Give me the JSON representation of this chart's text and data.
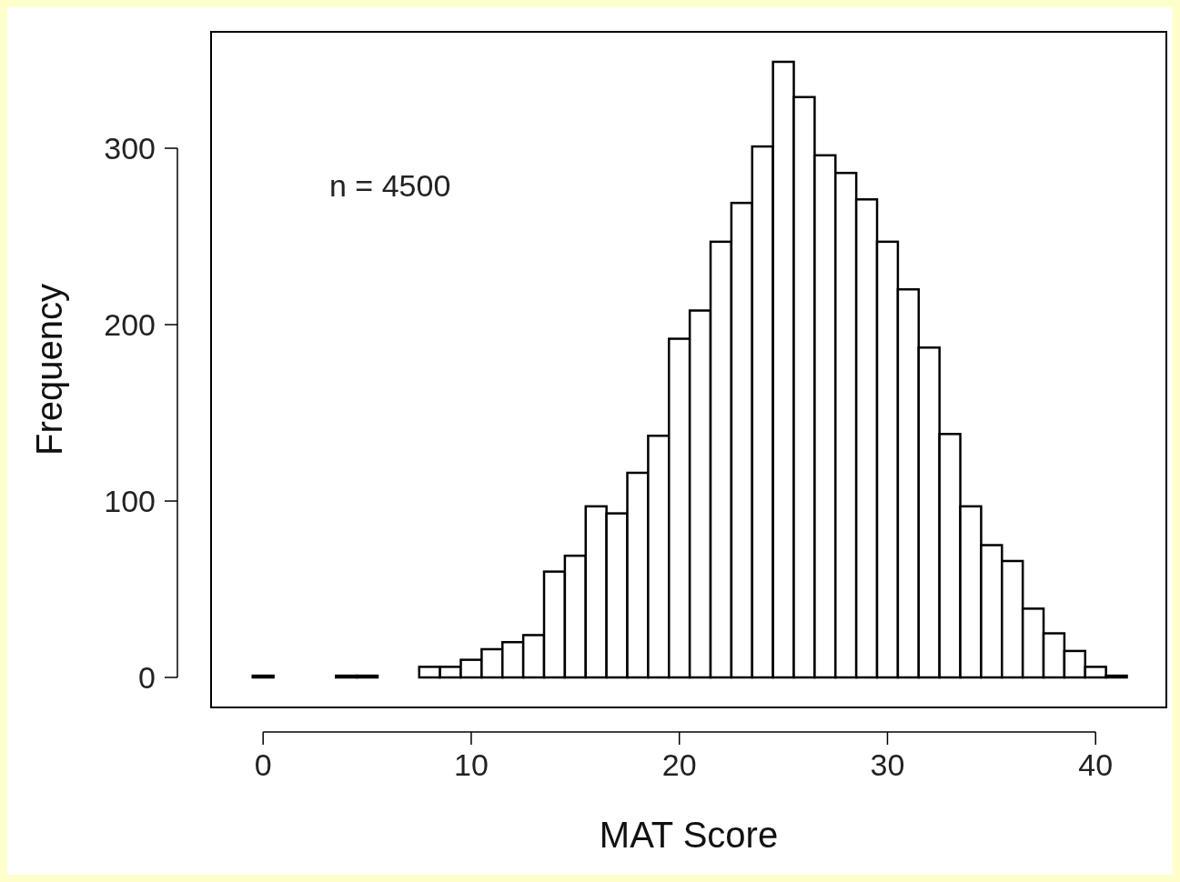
{
  "chart_data": {
    "type": "histogram",
    "xlabel": "MAT Score",
    "ylabel": "Frequency",
    "annotations": [
      "n = 4500"
    ],
    "bins": [
      -0.5,
      0.5,
      1.5,
      2.5,
      3.5,
      4.5,
      5.5,
      6.5,
      7.5,
      8.5,
      9.5,
      10.5,
      11.5,
      12.5,
      13.5,
      14.5,
      15.5,
      16.5,
      17.5,
      18.5,
      19.5,
      20.5,
      21.5,
      22.5,
      23.5,
      24.5,
      25.5,
      26.5,
      27.5,
      28.5,
      29.5,
      30.5,
      31.5,
      32.5,
      33.5,
      34.5,
      35.5,
      36.5,
      37.5,
      38.5,
      39.5,
      40.5,
      41.5
    ],
    "values": [
      1,
      0,
      0,
      0,
      1,
      1,
      0,
      0,
      6,
      6,
      10,
      16,
      20,
      24,
      60,
      69,
      97,
      93,
      116,
      137,
      192,
      208,
      247,
      269,
      301,
      349,
      329,
      296,
      286,
      271,
      247,
      220,
      187,
      138,
      97,
      75,
      66,
      39,
      25,
      15,
      6,
      1
    ],
    "color": "#ffffff",
    "xlim": [
      -2.5,
      43.4
    ],
    "ylim": [
      -17,
      366
    ],
    "xticks": [
      0,
      10,
      20,
      30,
      40
    ],
    "yticks": [
      0,
      100,
      200,
      300
    ],
    "grid": false
  }
}
